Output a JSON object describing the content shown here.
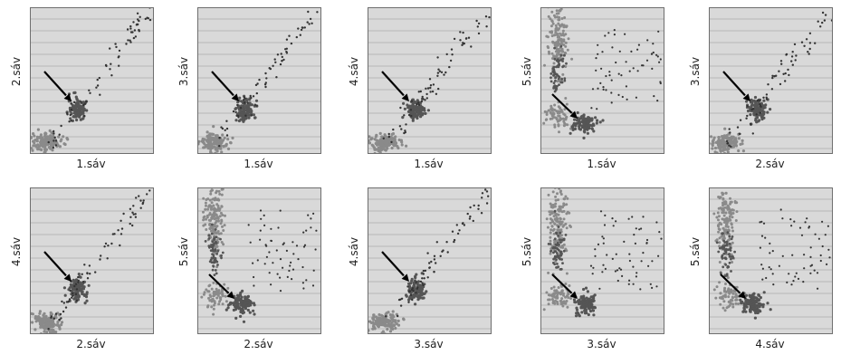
{
  "figure": {
    "panels": [
      {
        "x_band": "1.sáv",
        "y_band": "2.sáv",
        "pattern": "diagonal"
      },
      {
        "x_band": "1.sáv",
        "y_band": "3.sáv",
        "pattern": "diagonal"
      },
      {
        "x_band": "1.sáv",
        "y_band": "4.sáv",
        "pattern": "diagonal"
      },
      {
        "x_band": "1.sáv",
        "y_band": "5.sáv",
        "pattern": "vertical"
      },
      {
        "x_band": "2.sáv",
        "y_band": "3.sáv",
        "pattern": "diagonal"
      },
      {
        "x_band": "2.sáv",
        "y_band": "4.sáv",
        "pattern": "diagonal"
      },
      {
        "x_band": "2.sáv",
        "y_band": "5.sáv",
        "pattern": "vertical"
      },
      {
        "x_band": "3.sáv",
        "y_band": "4.sáv",
        "pattern": "diagonal"
      },
      {
        "x_band": "3.sáv",
        "y_band": "5.sáv",
        "pattern": "vertical"
      },
      {
        "x_band": "4.sáv",
        "y_band": "5.sáv",
        "pattern": "vertical"
      }
    ]
  },
  "chart_data": {
    "type": "scatter",
    "grid": true,
    "colors": {
      "plot_bg": "#d9d9d9",
      "grid": "#b8b8b8",
      "cluster_dark": "#555555",
      "cluster_mid": "#8a8a8a",
      "points": "#333333",
      "arrow": "#000000"
    }
  }
}
